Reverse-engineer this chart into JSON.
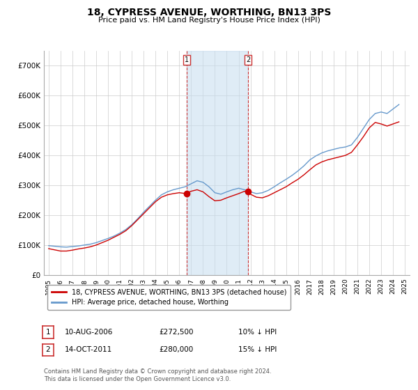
{
  "title": "18, CYPRESS AVENUE, WORTHING, BN13 3PS",
  "subtitle": "Price paid vs. HM Land Registry's House Price Index (HPI)",
  "hpi_color": "#6699cc",
  "price_color": "#cc0000",
  "background_color": "#ffffff",
  "plot_bg_color": "#ffffff",
  "grid_color": "#cccccc",
  "ylim": [
    0,
    750000
  ],
  "yticks": [
    0,
    100000,
    200000,
    300000,
    400000,
    500000,
    600000,
    700000
  ],
  "ytick_labels": [
    "£0",
    "£100K",
    "£200K",
    "£300K",
    "£400K",
    "£500K",
    "£600K",
    "£700K"
  ],
  "legend_price_label": "18, CYPRESS AVENUE, WORTHING, BN13 3PS (detached house)",
  "legend_hpi_label": "HPI: Average price, detached house, Worthing",
  "transaction1_date": "10-AUG-2006",
  "transaction1_price": "£272,500",
  "transaction1_hpi": "10% ↓ HPI",
  "transaction2_date": "14-OCT-2011",
  "transaction2_price": "£280,000",
  "transaction2_hpi": "15% ↓ HPI",
  "footer": "Contains HM Land Registry data © Crown copyright and database right 2024.\nThis data is licensed under the Open Government Licence v3.0.",
  "hpi_data_years": [
    1995,
    1995.5,
    1996,
    1996.5,
    1997,
    1997.5,
    1998,
    1998.5,
    1999,
    1999.5,
    2000,
    2000.5,
    2001,
    2001.5,
    2002,
    2002.5,
    2003,
    2003.5,
    2004,
    2004.5,
    2005,
    2005.5,
    2006,
    2006.5,
    2007,
    2007.5,
    2008,
    2008.5,
    2009,
    2009.5,
    2010,
    2010.5,
    2011,
    2011.5,
    2012,
    2012.5,
    2013,
    2013.5,
    2014,
    2014.5,
    2015,
    2015.5,
    2016,
    2016.5,
    2017,
    2017.5,
    2018,
    2018.5,
    2019,
    2019.5,
    2020,
    2020.5,
    2021,
    2021.5,
    2022,
    2022.5,
    2023,
    2023.5,
    2024,
    2024.5
  ],
  "hpi_data_values": [
    98000,
    96000,
    94000,
    93000,
    95000,
    97000,
    100000,
    103000,
    108000,
    115000,
    122000,
    130000,
    140000,
    152000,
    168000,
    188000,
    210000,
    230000,
    250000,
    268000,
    278000,
    285000,
    290000,
    295000,
    305000,
    315000,
    310000,
    295000,
    275000,
    270000,
    278000,
    285000,
    290000,
    285000,
    278000,
    272000,
    275000,
    283000,
    295000,
    308000,
    320000,
    333000,
    348000,
    365000,
    385000,
    398000,
    408000,
    415000,
    420000,
    425000,
    428000,
    435000,
    460000,
    490000,
    520000,
    540000,
    545000,
    540000,
    555000,
    570000
  ],
  "price_data_years": [
    1995,
    1995.5,
    1996,
    1996.5,
    1997,
    1997.5,
    1998,
    1998.5,
    1999,
    1999.5,
    2000,
    2000.5,
    2001,
    2001.5,
    2002,
    2002.5,
    2003,
    2003.5,
    2004,
    2004.5,
    2005,
    2005.5,
    2006,
    2006.5,
    2007,
    2007.5,
    2008,
    2008.5,
    2009,
    2009.5,
    2010,
    2010.5,
    2011,
    2011.5,
    2012,
    2012.5,
    2013,
    2013.5,
    2014,
    2014.5,
    2015,
    2015.5,
    2016,
    2016.5,
    2017,
    2017.5,
    2018,
    2018.5,
    2019,
    2019.5,
    2020,
    2020.5,
    2021,
    2021.5,
    2022,
    2022.5,
    2023,
    2023.5,
    2024,
    2024.5
  ],
  "price_data_values": [
    88000,
    84000,
    80000,
    80000,
    83000,
    87000,
    90000,
    94000,
    100000,
    108000,
    116000,
    126000,
    136000,
    148000,
    165000,
    185000,
    205000,
    225000,
    245000,
    260000,
    268000,
    272000,
    275000,
    272500,
    280000,
    285000,
    278000,
    262000,
    248000,
    250000,
    258000,
    265000,
    272000,
    280000,
    270000,
    260000,
    258000,
    265000,
    275000,
    285000,
    295000,
    308000,
    320000,
    335000,
    352000,
    368000,
    378000,
    385000,
    390000,
    395000,
    400000,
    410000,
    435000,
    462000,
    492000,
    510000,
    505000,
    498000,
    505000,
    512000
  ],
  "transaction1_x": 2006.6,
  "transaction1_y": 272500,
  "transaction2_x": 2011.8,
  "transaction2_y": 280000,
  "shade_x_start": 2006.6,
  "shade_x_end": 2011.8,
  "xtick_years": [
    1995,
    1996,
    1997,
    1998,
    1999,
    2000,
    2001,
    2002,
    2003,
    2004,
    2005,
    2006,
    2007,
    2008,
    2009,
    2010,
    2011,
    2012,
    2013,
    2014,
    2015,
    2016,
    2017,
    2018,
    2019,
    2020,
    2021,
    2022,
    2023,
    2024,
    2025
  ]
}
